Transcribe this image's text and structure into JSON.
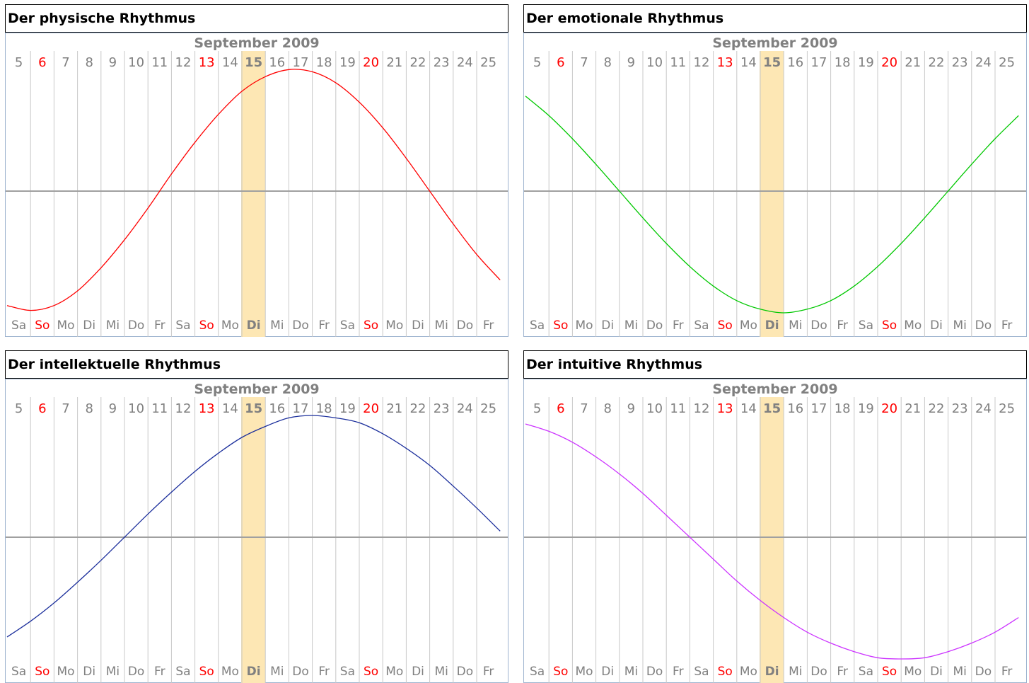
{
  "month_label": "September 2009",
  "highlight_color": "#fde7b4",
  "weekend_color": "#ff0000",
  "label_color": "#808080",
  "grid_color": "#c8c8c8",
  "axis_color": "#a0a0a0",
  "chart_data": [
    {
      "type": "line",
      "title": "Der physische Rhythmus",
      "line_color": "#ff0000",
      "header": "September 2009",
      "x_days": [
        5,
        6,
        7,
        8,
        9,
        10,
        11,
        12,
        13,
        14,
        15,
        16,
        17,
        18,
        19,
        20,
        21,
        22,
        23,
        24,
        25
      ],
      "x_weekdays": [
        "Sa",
        "So",
        "Mo",
        "Di",
        "Mi",
        "Do",
        "Fr",
        "Sa",
        "So",
        "Mo",
        "Di",
        "Mi",
        "Do",
        "Fr",
        "Sa",
        "So",
        "Mo",
        "Di",
        "Mi",
        "Do",
        "Fr"
      ],
      "sunday_days": [
        6,
        13,
        20
      ],
      "today": 15,
      "ylim": [
        -1,
        1
      ],
      "series": [
        {
          "x": [
            5,
            6,
            7,
            8,
            9,
            10,
            11,
            12,
            13,
            14,
            15,
            16,
            17,
            18,
            19,
            20,
            21,
            22,
            23,
            24,
            25,
            26
          ],
          "values": [
            -0.94,
            -0.98,
            -0.94,
            -0.82,
            -0.63,
            -0.4,
            -0.14,
            0.14,
            0.4,
            0.63,
            0.82,
            0.94,
            0.998,
            0.98,
            0.89,
            0.73,
            0.52,
            0.27,
            0.0,
            -0.27,
            -0.52,
            -0.73
          ]
        }
      ]
    },
    {
      "type": "line",
      "title": "Der emotionale Rhythmus",
      "line_color": "#00c800",
      "header": "September 2009",
      "x_days": [
        5,
        6,
        7,
        8,
        9,
        10,
        11,
        12,
        13,
        14,
        15,
        16,
        17,
        18,
        19,
        20,
        21,
        22,
        23,
        24,
        25
      ],
      "x_weekdays": [
        "Sa",
        "So",
        "Mo",
        "Di",
        "Mi",
        "Do",
        "Fr",
        "Sa",
        "So",
        "Mo",
        "Di",
        "Mi",
        "Do",
        "Fr",
        "Sa",
        "So",
        "Mo",
        "Di",
        "Mi",
        "Do",
        "Fr"
      ],
      "sunday_days": [
        6,
        13,
        20
      ],
      "today": 15,
      "ylim": [
        -1,
        1
      ],
      "series": [
        {
          "x": [
            5,
            6,
            7,
            8,
            9,
            10,
            11,
            12,
            13,
            14,
            15,
            16,
            17,
            18,
            19,
            20,
            21,
            22,
            23,
            24,
            25,
            26
          ],
          "values": [
            0.78,
            0.62,
            0.43,
            0.22,
            0.0,
            -0.22,
            -0.43,
            -0.62,
            -0.78,
            -0.9,
            -0.97,
            -1.0,
            -0.97,
            -0.9,
            -0.78,
            -0.62,
            -0.43,
            -0.22,
            0.0,
            0.22,
            0.43,
            0.62
          ]
        }
      ]
    },
    {
      "type": "line",
      "title": "Der intellektuelle Rhythmus",
      "line_color": "#1c2f9c",
      "header": "September 2009",
      "x_days": [
        5,
        6,
        7,
        8,
        9,
        10,
        11,
        12,
        13,
        14,
        15,
        16,
        17,
        18,
        19,
        20,
        21,
        22,
        23,
        24,
        25
      ],
      "x_weekdays": [
        "Sa",
        "So",
        "Mo",
        "Di",
        "Mi",
        "Do",
        "Fr",
        "Sa",
        "So",
        "Mo",
        "Di",
        "Mi",
        "Do",
        "Fr",
        "Sa",
        "So",
        "Mo",
        "Di",
        "Mi",
        "Do",
        "Fr"
      ],
      "sunday_days": [
        6,
        13,
        20
      ],
      "today": 15,
      "ylim": [
        -1,
        1
      ],
      "series": [
        {
          "x": [
            5,
            6,
            7,
            8,
            9,
            10,
            11,
            12,
            13,
            14,
            15,
            16,
            17,
            18,
            19,
            20,
            21,
            22,
            23,
            24,
            25,
            26
          ],
          "values": [
            -0.82,
            -0.69,
            -0.54,
            -0.37,
            -0.19,
            0.0,
            0.19,
            0.37,
            0.54,
            0.69,
            0.82,
            0.91,
            0.98,
            1.0,
            0.98,
            0.94,
            0.85,
            0.73,
            0.59,
            0.42,
            0.24,
            0.05
          ]
        }
      ]
    },
    {
      "type": "line",
      "title": "Der intuitive Rhythmus",
      "line_color": "#cc33ff",
      "header": "September 2009",
      "x_days": [
        5,
        6,
        7,
        8,
        9,
        10,
        11,
        12,
        13,
        14,
        15,
        16,
        17,
        18,
        19,
        20,
        21,
        22,
        23,
        24,
        25
      ],
      "x_weekdays": [
        "Sa",
        "So",
        "Mo",
        "Di",
        "Mi",
        "Do",
        "Fr",
        "Sa",
        "So",
        "Mo",
        "Di",
        "Mi",
        "Do",
        "Fr",
        "Sa",
        "So",
        "Mo",
        "Di",
        "Mi",
        "Do",
        "Fr"
      ],
      "sunday_days": [
        6,
        13,
        20
      ],
      "today": 15,
      "ylim": [
        -1,
        1
      ],
      "series": [
        {
          "x": [
            5,
            6,
            7,
            8,
            9,
            10,
            11,
            12,
            13,
            14,
            15,
            16,
            17,
            18,
            19,
            20,
            21,
            22,
            23,
            24,
            25,
            26
          ],
          "values": [
            0.93,
            0.87,
            0.78,
            0.66,
            0.52,
            0.36,
            0.18,
            0.0,
            -0.18,
            -0.36,
            -0.52,
            -0.66,
            -0.78,
            -0.87,
            -0.94,
            -0.99,
            -1.0,
            -0.99,
            -0.94,
            -0.87,
            -0.78,
            -0.66
          ]
        }
      ]
    }
  ]
}
